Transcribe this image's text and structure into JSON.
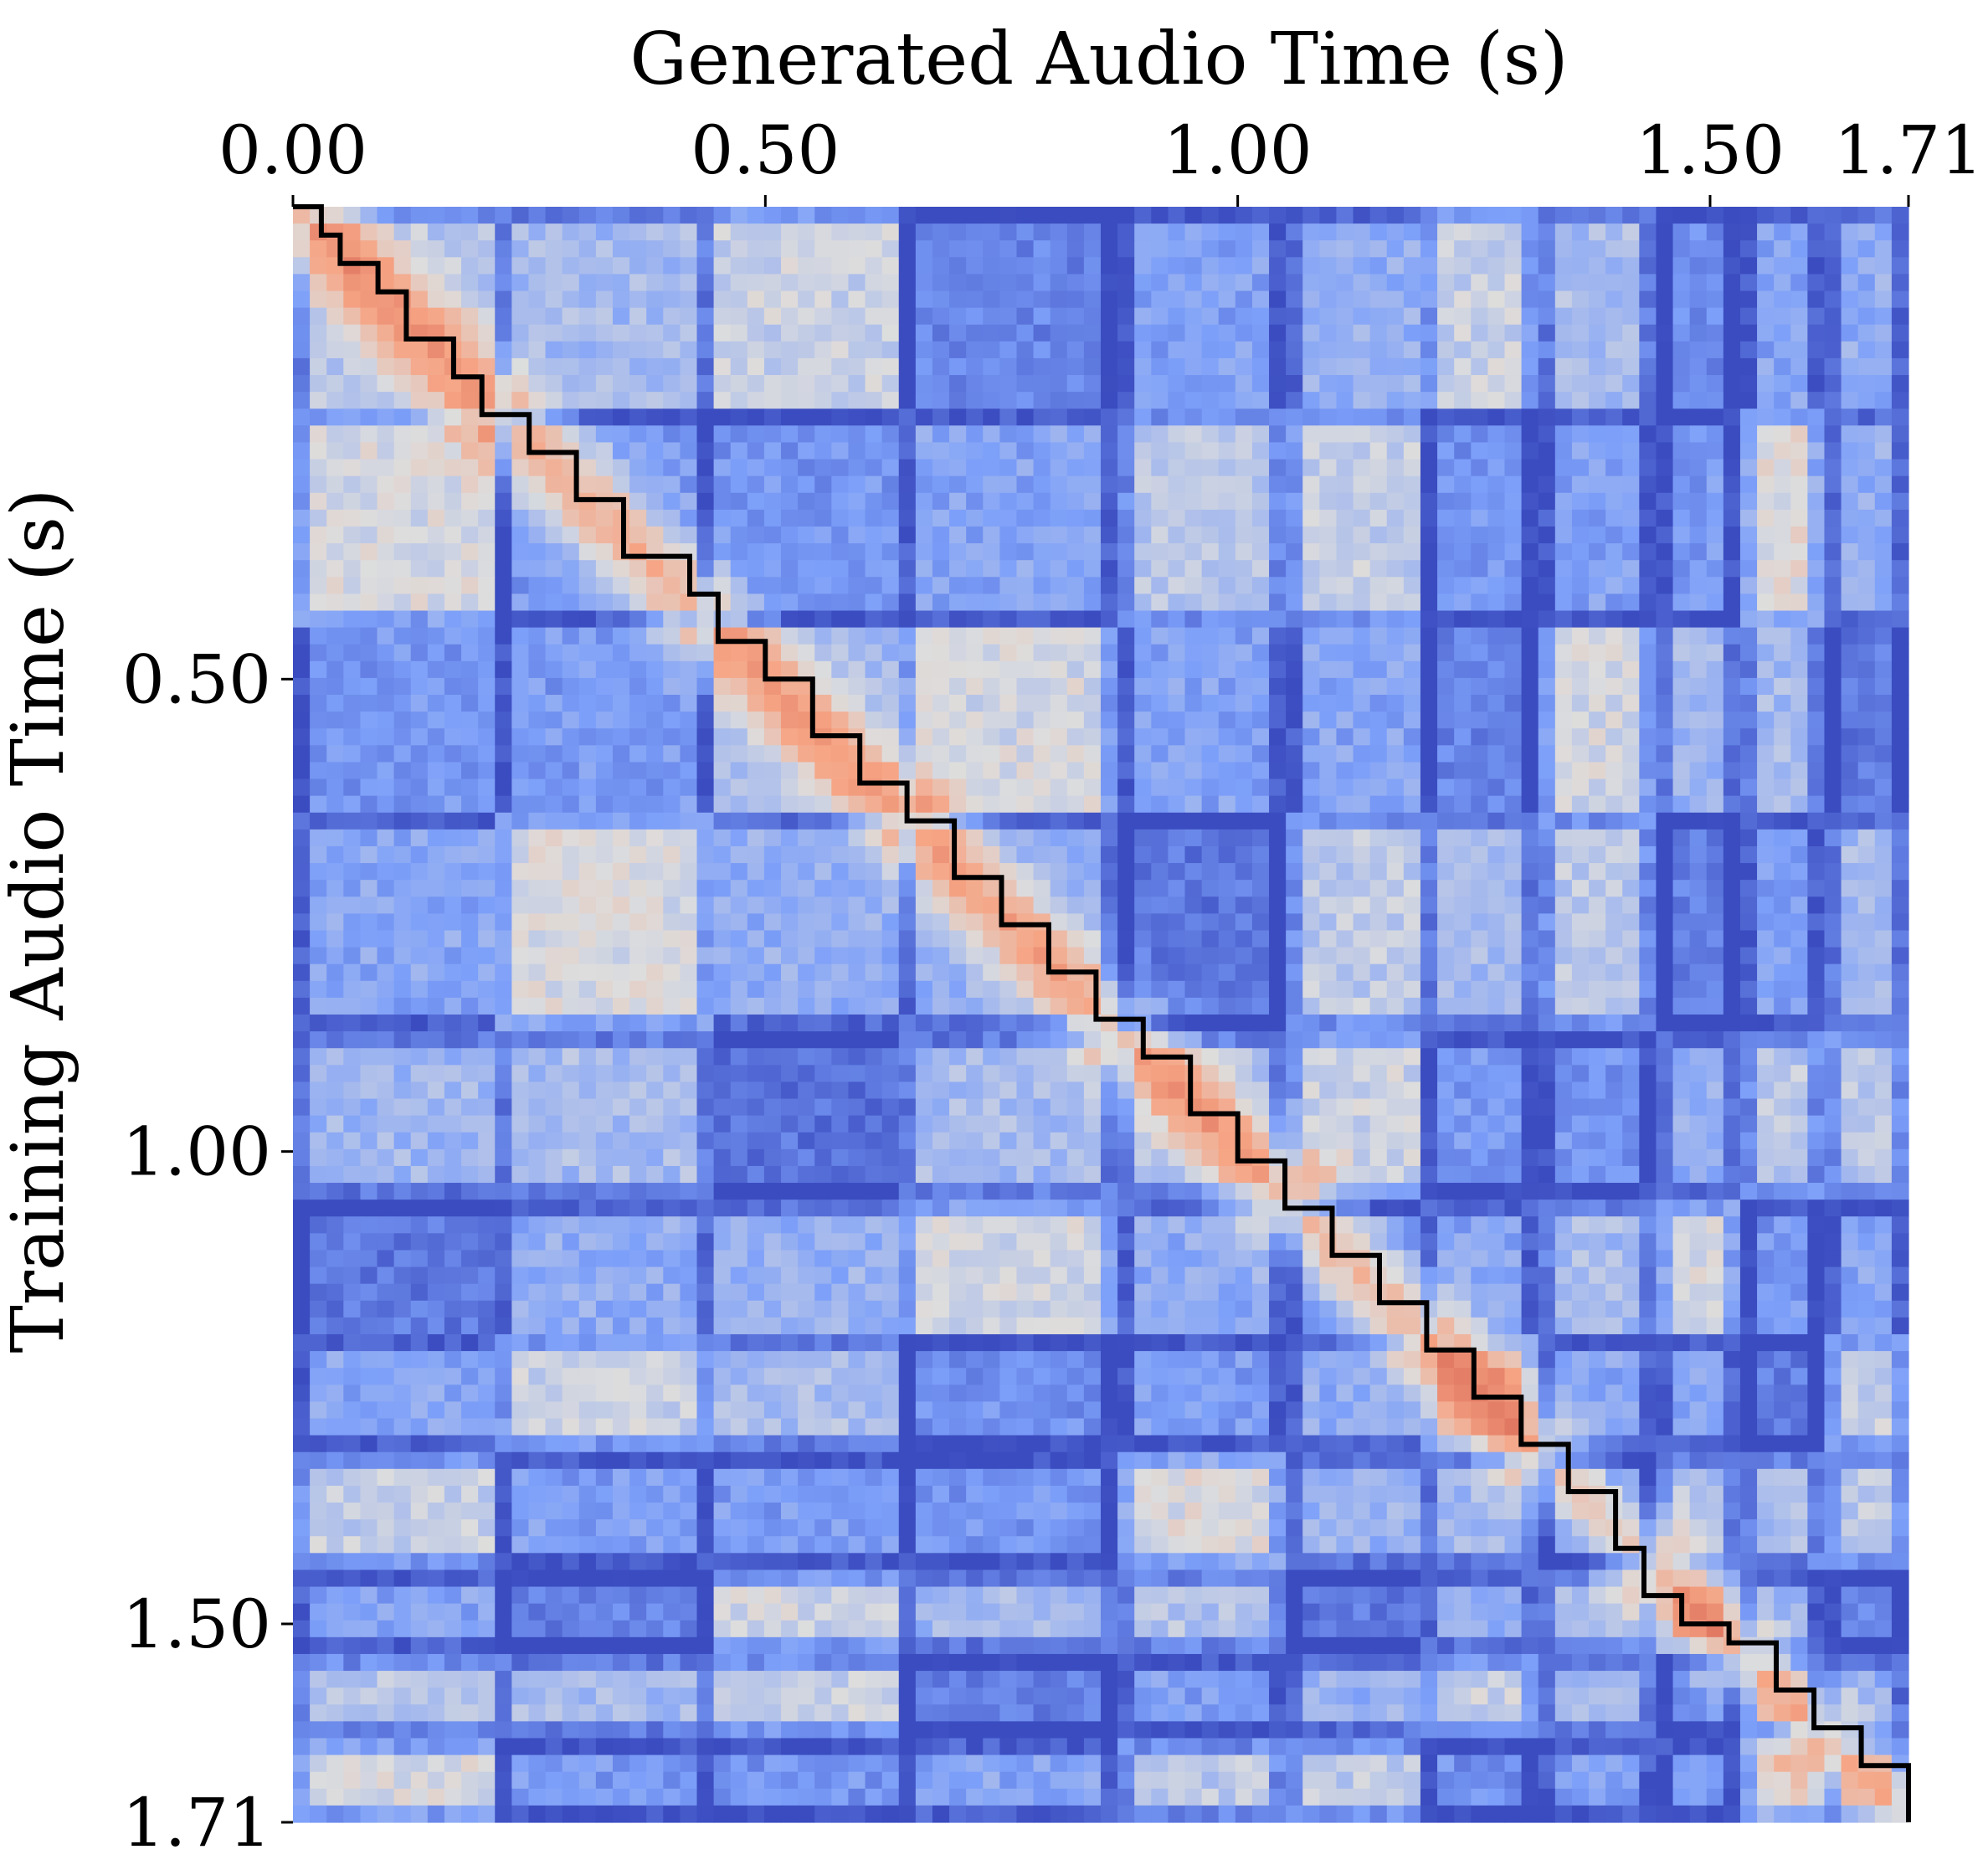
{
  "chart_data": {
    "type": "heatmap",
    "xlabel": "Generated Audio Time (s)",
    "ylabel": "Training Audio Time (s)",
    "x_axis_position": "top",
    "xlim": [
      0.0,
      1.71
    ],
    "ylim": [
      0.0,
      1.71
    ],
    "y_inverted": true,
    "x_ticks": [
      {
        "value": 0.0,
        "label": "0.00"
      },
      {
        "value": 0.5,
        "label": "0.50"
      },
      {
        "value": 1.0,
        "label": "1.00"
      },
      {
        "value": 1.5,
        "label": "1.50"
      },
      {
        "value": 1.71,
        "label": "1.71"
      }
    ],
    "y_ticks": [
      {
        "value": 0.5,
        "label": "0.50"
      },
      {
        "value": 1.0,
        "label": "1.00"
      },
      {
        "value": 1.5,
        "label": "1.50"
      },
      {
        "value": 1.71,
        "label": "1.71"
      }
    ],
    "colormap": "coolwarm",
    "colors": {
      "low": "#3b4cc0",
      "mid": "#dddddd",
      "high": "#e07a5f"
    },
    "grid": false,
    "legend": "none",
    "segment_boundaries_s": [
      0.0,
      0.22,
      0.44,
      0.65,
      0.87,
      1.05,
      1.2,
      1.32,
      1.44,
      1.53,
      1.62,
      1.71
    ],
    "alignment_path_color": "#000000",
    "alignment_path": [
      [
        0.0,
        0.0
      ],
      [
        0.03,
        0.03
      ],
      [
        0.05,
        0.06
      ],
      [
        0.09,
        0.09
      ],
      [
        0.12,
        0.14
      ],
      [
        0.17,
        0.18
      ],
      [
        0.2,
        0.22
      ],
      [
        0.25,
        0.26
      ],
      [
        0.3,
        0.31
      ],
      [
        0.35,
        0.37
      ],
      [
        0.42,
        0.41
      ],
      [
        0.45,
        0.46
      ],
      [
        0.5,
        0.5
      ],
      [
        0.55,
        0.56
      ],
      [
        0.6,
        0.61
      ],
      [
        0.65,
        0.65
      ],
      [
        0.7,
        0.71
      ],
      [
        0.75,
        0.76
      ],
      [
        0.8,
        0.81
      ],
      [
        0.85,
        0.86
      ],
      [
        0.9,
        0.9
      ],
      [
        0.95,
        0.96
      ],
      [
        1.0,
        1.01
      ],
      [
        1.05,
        1.06
      ],
      [
        1.1,
        1.11
      ],
      [
        1.15,
        1.16
      ],
      [
        1.2,
        1.21
      ],
      [
        1.25,
        1.26
      ],
      [
        1.3,
        1.31
      ],
      [
        1.35,
        1.36
      ],
      [
        1.4,
        1.42
      ],
      [
        1.43,
        1.47
      ],
      [
        1.47,
        1.5
      ],
      [
        1.52,
        1.52
      ],
      [
        1.57,
        1.57
      ],
      [
        1.61,
        1.61
      ],
      [
        1.66,
        1.65
      ],
      [
        1.71,
        1.71
      ]
    ]
  }
}
